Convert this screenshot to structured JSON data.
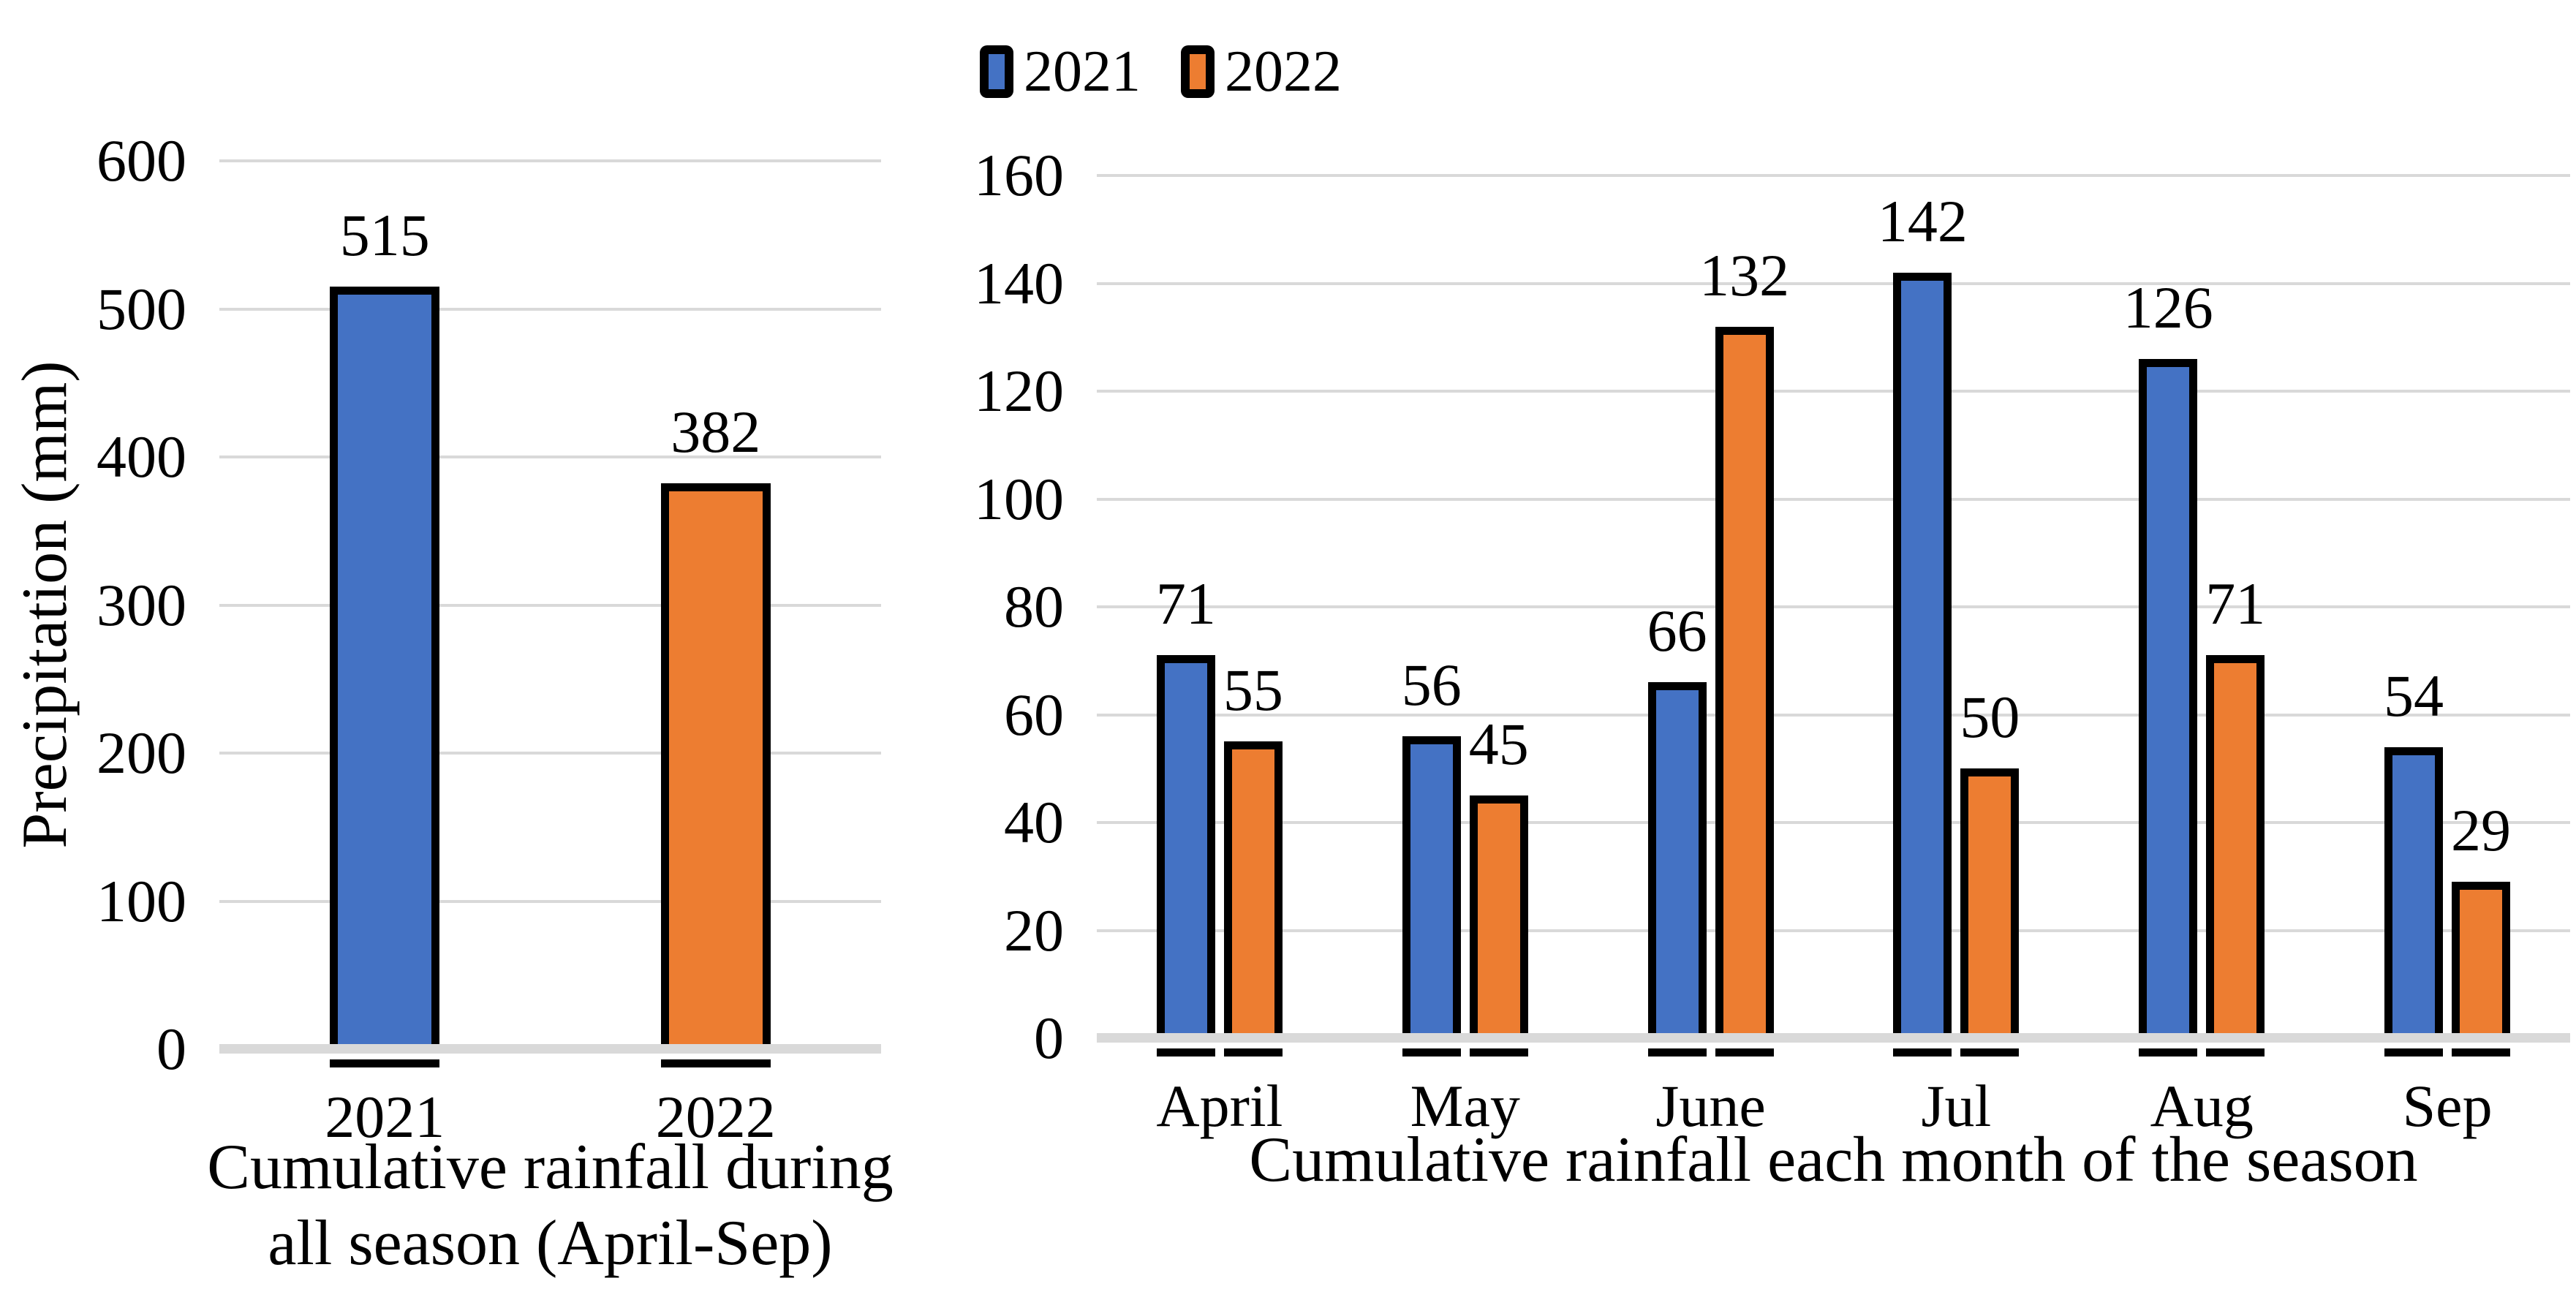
{
  "legend": {
    "items": [
      {
        "label": "2021",
        "color": "#4472C4"
      },
      {
        "label": "2022",
        "color": "#ED7D31"
      }
    ]
  },
  "chart_data": [
    {
      "id": "season-total",
      "type": "bar",
      "categories": [
        "2021",
        "2022"
      ],
      "values": [
        515,
        382
      ],
      "bar_colors": [
        "#4472C4",
        "#ED7D31"
      ],
      "data_labels": [
        515,
        382
      ],
      "xlabel": "Cumulative rainfall during all season (April-Sep)",
      "xlabel_lines": [
        "Cumulative rainfall during",
        "all season (April-Sep)"
      ],
      "ylabel": "Precipitation (mm)",
      "ylim": [
        0,
        600
      ],
      "ytick_step": 100,
      "yticks": [
        0,
        100,
        200,
        300,
        400,
        500,
        600
      ],
      "grid": true
    },
    {
      "id": "monthly",
      "type": "bar",
      "categories": [
        "April",
        "May",
        "June",
        "Jul",
        "Aug",
        "Sep"
      ],
      "series": [
        {
          "name": "2021",
          "color": "#4472C4",
          "values": [
            71,
            56,
            66,
            142,
            126,
            54
          ]
        },
        {
          "name": "2022",
          "color": "#ED7D31",
          "values": [
            55,
            45,
            132,
            50,
            71,
            29
          ]
        }
      ],
      "xlabel": "Cumulative rainfall each month of the season",
      "ylim": [
        0,
        160
      ],
      "ytick_step": 20,
      "yticks": [
        0,
        20,
        40,
        60,
        80,
        100,
        120,
        140,
        160
      ],
      "grid": true,
      "legend_position": "top"
    }
  ],
  "colors": {
    "bar_blue": "#4472C4",
    "bar_orange": "#ED7D31",
    "bar_border": "#000000",
    "gridline": "#D9D9D9",
    "axis_line": "#D9D9D9",
    "text": "#000000",
    "background": "#FFFFFF"
  }
}
